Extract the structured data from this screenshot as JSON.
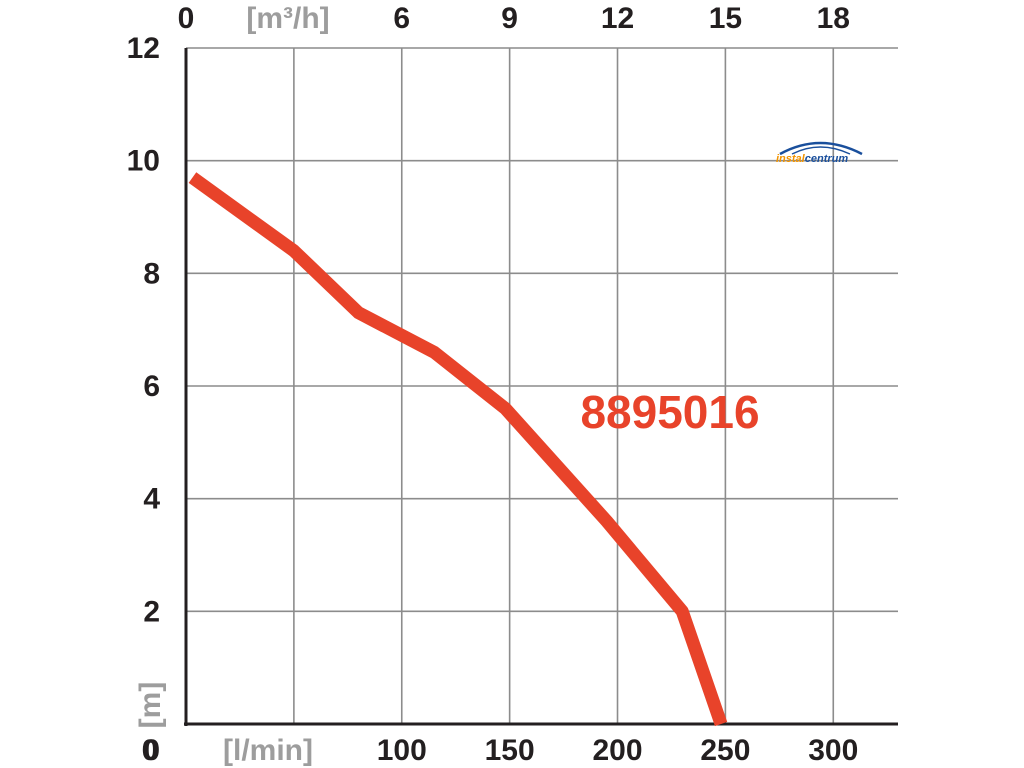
{
  "chart_data": {
    "type": "line",
    "model_label": "8895016",
    "colors": {
      "line": "#e8432a",
      "grid": "#8c8c8c",
      "axis": "#231f20",
      "unit_text": "#9d9d9d"
    },
    "x_axis": {
      "unit": "[l/min]",
      "range": [
        0,
        330
      ],
      "tick_labels": [
        "0",
        "100",
        "150",
        "200",
        "250",
        "300"
      ],
      "tick_values": [
        0,
        100,
        150,
        200,
        250,
        300
      ]
    },
    "x2_axis": {
      "unit": "[m³/h]",
      "tick_labels": [
        "0",
        "6",
        "9",
        "12",
        "15",
        "18"
      ],
      "tick_values": [
        0,
        6,
        9,
        12,
        15,
        18
      ]
    },
    "y_axis": {
      "unit": "[m]",
      "range": [
        0,
        12
      ],
      "tick_labels": [
        "0",
        "2",
        "4",
        "6",
        "8",
        "10",
        "12"
      ],
      "tick_values": [
        0,
        2,
        4,
        6,
        8,
        10,
        12
      ]
    },
    "grid": true,
    "series": [
      {
        "x": [
          3,
          50,
          80,
          115,
          148,
          195,
          230,
          248
        ],
        "y": [
          9.7,
          8.4,
          7.3,
          6.6,
          5.6,
          3.6,
          2.0,
          0.0
        ]
      }
    ]
  },
  "logo": {
    "part1": "instal",
    "part2": "centrum",
    "color1": "#f29400",
    "color2": "#1a4f9c"
  }
}
